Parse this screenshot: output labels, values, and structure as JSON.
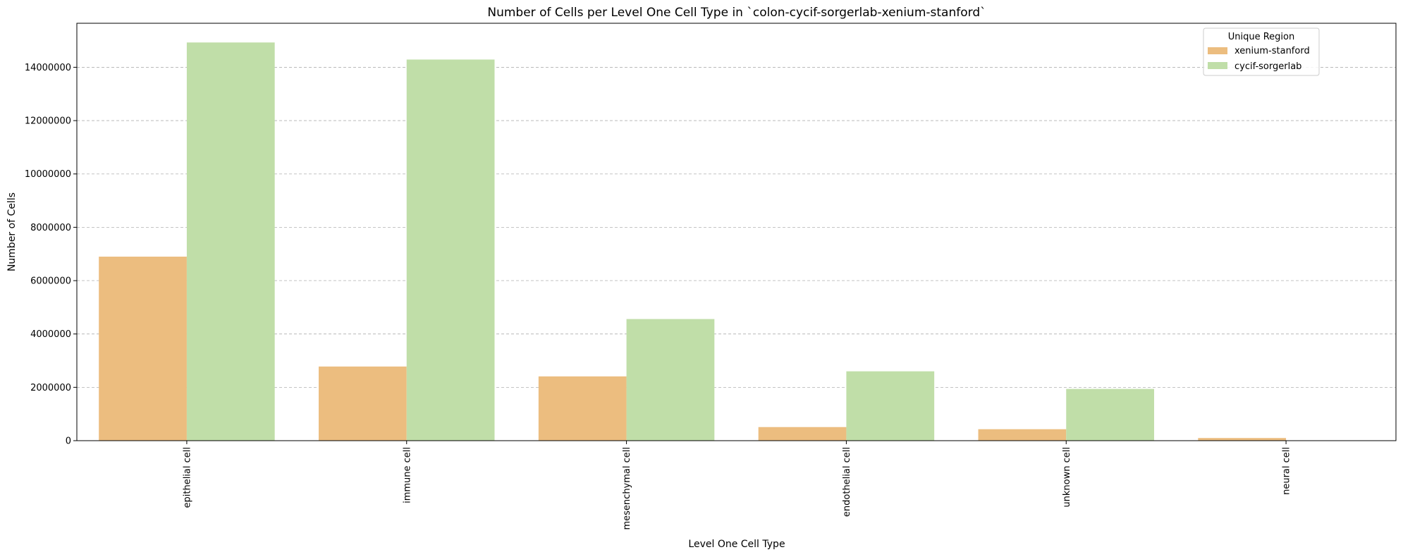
{
  "chart_data": {
    "type": "bar",
    "title": "Number of Cells per Level One Cell Type in `colon-cycif-sorgerlab-xenium-stanford`",
    "xlabel": "Level One Cell Type",
    "ylabel": "Number of Cells",
    "categories": [
      "epithelial cell",
      "immune cell",
      "mesenchymal cell",
      "endothelial cell",
      "unknown cell",
      "neural cell"
    ],
    "series": [
      {
        "name": "xenium-stanford",
        "color": "#ecbd7f",
        "values": [
          6900000,
          2780000,
          2410000,
          510000,
          430000,
          100000
        ]
      },
      {
        "name": "cycif-sorgerlab",
        "color": "#c0dea8",
        "values": [
          14930000,
          14290000,
          4560000,
          2600000,
          1940000,
          0
        ]
      }
    ],
    "ylim": [
      0,
      15650000
    ],
    "yticks": [
      0,
      2000000,
      4000000,
      6000000,
      8000000,
      10000000,
      12000000,
      14000000
    ],
    "ytick_labels": [
      "0",
      "2000000",
      "4000000",
      "6000000",
      "8000000",
      "10000000",
      "12000000",
      "14000000"
    ],
    "grid": "y-dashed",
    "legend": {
      "title": "Unique Region",
      "placement": "top-right"
    }
  }
}
